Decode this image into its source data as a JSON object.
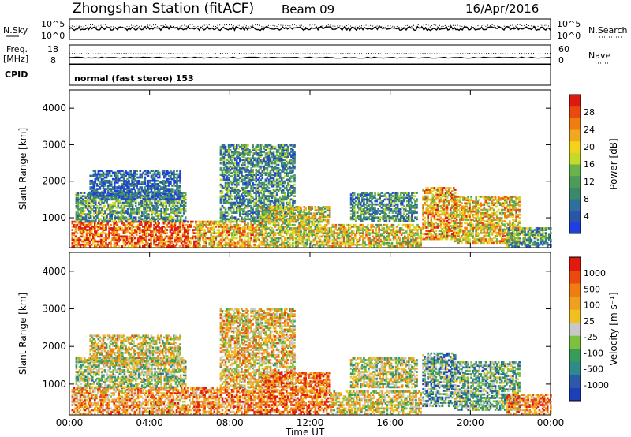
{
  "header": {
    "station": "Zhongshan Station (fitACF)",
    "beam": "Beam 09",
    "date": "16/Apr/2016"
  },
  "strip_labels": {
    "nsky": "N.Sky",
    "nsky_ticks": [
      "10^5",
      "10^0"
    ],
    "nsearch": "N.Search",
    "nsearch_ticks": [
      "10^5",
      "10^0"
    ],
    "freq_top": "Freq.",
    "freq_unit": "[MHz]",
    "freq_ticks": [
      "18",
      "8"
    ],
    "nave": "Nave",
    "nave_ticks": [
      "60",
      "0"
    ],
    "cpid": "CPID",
    "mode": "normal (fast stereo) 153"
  },
  "chart_data": [
    {
      "type": "heatmap",
      "panel": "power",
      "ylabel": "Slant Range [km]",
      "xlabel": "Time UT",
      "xlim": [
        "00:00",
        "24:00"
      ],
      "ylim": [
        180,
        4500
      ],
      "yticks": [
        "1000",
        "2000",
        "3000",
        "4000"
      ],
      "xticks": [
        "00:00",
        "04:00",
        "08:00",
        "12:00",
        "16:00",
        "20:00",
        "00:00"
      ],
      "colorbar": {
        "label": "Power [dB]",
        "ticks": [
          "4",
          "8",
          "12",
          "16",
          "20",
          "24",
          "28"
        ],
        "colors": [
          "#1f3fe0",
          "#2a55a8",
          "#2e6fa0",
          "#3a8a6a",
          "#4e9a5a",
          "#6bb24a",
          "#c6d82a",
          "#f2d21a",
          "#f0a820",
          "#ef7d12",
          "#ea4a10",
          "#dc1a10"
        ]
      },
      "regions": [
        {
          "t": [
            0.1,
            6.3
          ],
          "r": [
            200,
            900
          ],
          "level": 0.85
        },
        {
          "t": [
            0.3,
            5.8
          ],
          "r": [
            900,
            1700
          ],
          "level": 0.35
        },
        {
          "t": [
            1.0,
            5.5
          ],
          "r": [
            1500,
            2300
          ],
          "level": 0.15
        },
        {
          "t": [
            6.3,
            9.6
          ],
          "r": [
            200,
            900
          ],
          "level": 0.7
        },
        {
          "t": [
            7.5,
            11.2
          ],
          "r": [
            900,
            3000
          ],
          "level": 0.3
        },
        {
          "t": [
            9.5,
            13.0
          ],
          "r": [
            200,
            1300
          ],
          "level": 0.55
        },
        {
          "t": [
            13.0,
            17.5
          ],
          "r": [
            200,
            800
          ],
          "level": 0.6
        },
        {
          "t": [
            14.0,
            17.3
          ],
          "r": [
            900,
            1700
          ],
          "level": 0.3
        },
        {
          "t": [
            17.6,
            19.2
          ],
          "r": [
            400,
            1800
          ],
          "level": 0.7
        },
        {
          "t": [
            19.2,
            22.4
          ],
          "r": [
            300,
            1600
          ],
          "level": 0.65
        },
        {
          "t": [
            21.8,
            24.0
          ],
          "r": [
            200,
            700
          ],
          "level": 0.35
        }
      ]
    },
    {
      "type": "heatmap",
      "panel": "velocity",
      "ylabel": "Slant Range [km]",
      "xlabel": "Time UT",
      "xlim": [
        "00:00",
        "24:00"
      ],
      "ylim": [
        180,
        4500
      ],
      "yticks": [
        "1000",
        "2000",
        "3000",
        "4000"
      ],
      "xticks": [
        "00:00",
        "04:00",
        "08:00",
        "12:00",
        "16:00",
        "20:00",
        "00:00"
      ],
      "colorbar": {
        "label": "Velocity [m s⁻¹]",
        "ticks": [
          "1000",
          "500",
          "100",
          "25",
          "-25",
          "-100",
          "-500",
          "-1000"
        ],
        "colors": [
          "#1f3fb8",
          "#2a5aa8",
          "#2f8a8a",
          "#3a9a5a",
          "#7cc040",
          "#c8c8c8",
          "#f0c020",
          "#f0a020",
          "#ef7d12",
          "#ea4a10",
          "#e01a10"
        ]
      },
      "regions": [
        {
          "t": [
            0.1,
            6.3
          ],
          "r": [
            200,
            900
          ],
          "level": 0.7
        },
        {
          "t": [
            0.3,
            5.8
          ],
          "r": [
            900,
            1700
          ],
          "level": 0.45
        },
        {
          "t": [
            1.0,
            5.5
          ],
          "r": [
            1500,
            2300
          ],
          "level": 0.55
        },
        {
          "t": [
            6.3,
            9.6
          ],
          "r": [
            200,
            900
          ],
          "level": 0.75
        },
        {
          "t": [
            7.5,
            11.2
          ],
          "r": [
            900,
            3000
          ],
          "level": 0.6
        },
        {
          "t": [
            9.5,
            13.0
          ],
          "r": [
            200,
            1300
          ],
          "level": 0.8
        },
        {
          "t": [
            13.0,
            17.5
          ],
          "r": [
            200,
            800
          ],
          "level": 0.55
        },
        {
          "t": [
            14.0,
            17.3
          ],
          "r": [
            900,
            1700
          ],
          "level": 0.5
        },
        {
          "t": [
            17.6,
            19.2
          ],
          "r": [
            400,
            1800
          ],
          "level": 0.3
        },
        {
          "t": [
            19.2,
            22.4
          ],
          "r": [
            300,
            1600
          ],
          "level": 0.35
        },
        {
          "t": [
            21.8,
            24.0
          ],
          "r": [
            200,
            700
          ],
          "level": 0.75
        }
      ]
    }
  ]
}
